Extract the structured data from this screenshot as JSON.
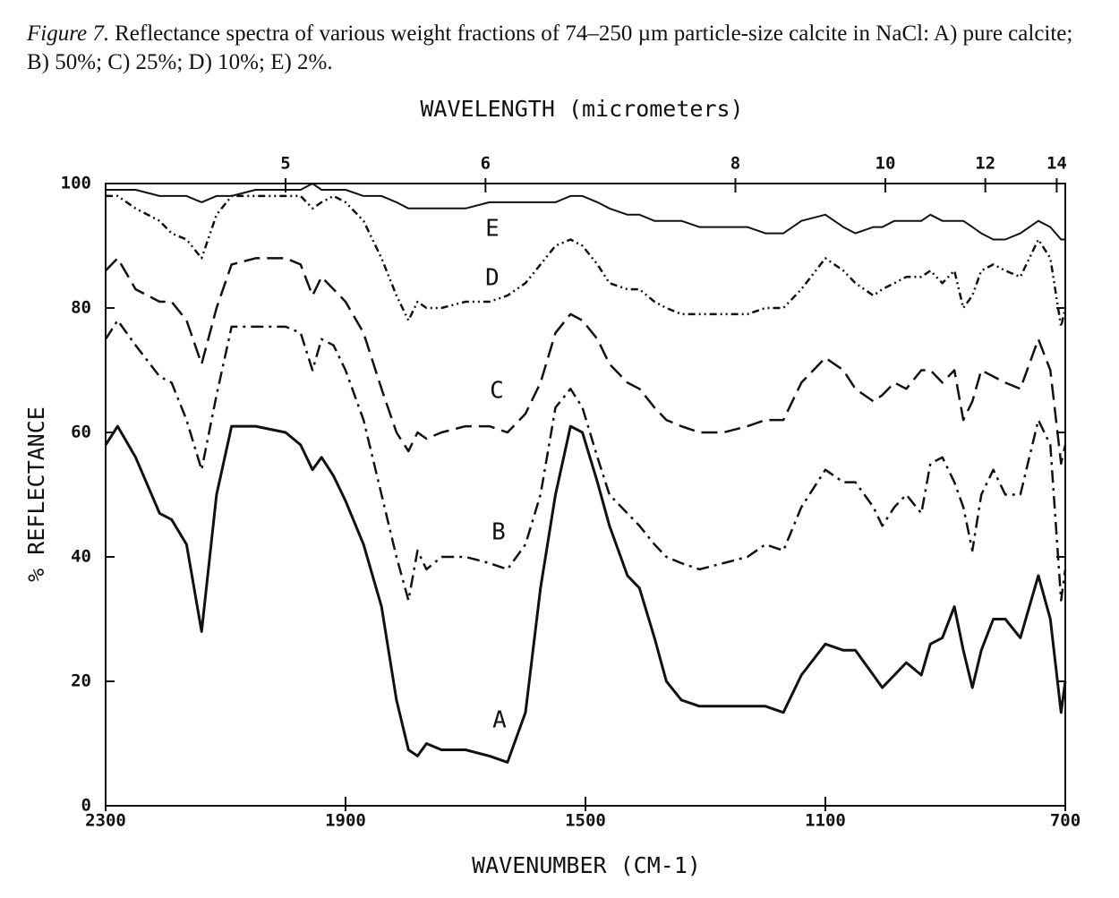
{
  "caption_label": "Figure 7.",
  "caption": "Reflectance spectra of various weight fractions of 74–250 µm particle-size calcite in NaCl: A) pure calcite; B) 50%; C) 25%; D) 10%; E) 2%.",
  "chart_data": {
    "type": "line",
    "x_label": "WAVENUMBER (CM-1)",
    "x2_label": "WAVELENGTH (micrometers)",
    "y_label": "% REFLECTANCE",
    "xlim": [
      2300,
      700
    ],
    "xticks": [
      2300,
      1900,
      1500,
      1100,
      700
    ],
    "x2ticks": [
      5,
      6,
      8,
      10,
      12,
      14
    ],
    "ylim": [
      0,
      100
    ],
    "yticks": [
      0,
      20,
      40,
      60,
      80,
      100
    ],
    "grid": false,
    "x": [
      2300,
      2280,
      2250,
      2210,
      2190,
      2165,
      2140,
      2115,
      2090,
      2050,
      2000,
      1975,
      1955,
      1940,
      1920,
      1900,
      1870,
      1840,
      1815,
      1795,
      1780,
      1765,
      1740,
      1700,
      1660,
      1630,
      1600,
      1575,
      1550,
      1525,
      1505,
      1480,
      1460,
      1430,
      1410,
      1385,
      1365,
      1340,
      1310,
      1270,
      1230,
      1200,
      1170,
      1140,
      1100,
      1070,
      1050,
      1020,
      1005,
      985,
      965,
      940,
      925,
      905,
      885,
      870,
      855,
      840,
      820,
      800,
      775,
      745,
      725,
      707,
      700
    ],
    "series": [
      {
        "name": "A",
        "color": "#111111",
        "linestyle": "solid",
        "values": [
          58,
          61,
          56,
          47,
          46,
          42,
          28,
          50,
          61,
          61,
          60,
          58,
          54,
          56,
          53,
          49,
          42,
          32,
          17,
          9,
          8,
          10,
          9,
          9,
          8,
          7,
          15,
          35,
          50,
          61,
          60,
          52,
          45,
          37,
          35,
          27,
          20,
          17,
          16,
          16,
          16,
          16,
          15,
          21,
          26,
          25,
          25,
          21,
          19,
          21,
          23,
          21,
          26,
          27,
          32,
          25,
          19,
          25,
          30,
          30,
          27,
          37,
          30,
          15,
          20
        ]
      },
      {
        "name": "B",
        "color": "#111111",
        "linestyle": "dash-dot",
        "values": [
          75,
          78,
          74,
          69,
          68,
          62,
          54,
          66,
          77,
          77,
          77,
          76,
          70,
          75,
          74,
          70,
          62,
          50,
          40,
          33,
          41,
          38,
          40,
          40,
          39,
          38,
          42,
          50,
          64,
          67,
          64,
          56,
          50,
          47,
          45,
          42,
          40,
          39,
          38,
          39,
          40,
          42,
          41,
          48,
          54,
          52,
          52,
          48,
          45,
          48,
          50,
          47,
          55,
          56,
          52,
          48,
          41,
          50,
          54,
          50,
          50,
          62,
          58,
          33,
          38
        ]
      },
      {
        "name": "C",
        "color": "#111111",
        "linestyle": "dashed",
        "values": [
          86,
          88,
          83,
          81,
          81,
          78,
          71,
          80,
          87,
          88,
          88,
          87,
          82,
          85,
          83,
          81,
          76,
          67,
          60,
          57,
          60,
          59,
          60,
          61,
          61,
          60,
          63,
          68,
          76,
          79,
          78,
          75,
          71,
          68,
          67,
          64,
          62,
          61,
          60,
          60,
          61,
          62,
          62,
          68,
          72,
          70,
          67,
          65,
          66,
          68,
          67,
          70,
          70,
          68,
          70,
          62,
          65,
          70,
          69,
          68,
          67,
          75,
          70,
          55,
          58
        ]
      },
      {
        "name": "D",
        "color": "#111111",
        "linestyle": "dot-dash",
        "values": [
          98,
          98,
          96,
          94,
          92,
          91,
          88,
          95,
          98,
          98,
          98,
          98,
          96,
          97,
          98,
          97,
          94,
          88,
          82,
          78,
          81,
          80,
          80,
          81,
          81,
          82,
          84,
          87,
          90,
          91,
          90,
          87,
          84,
          83,
          83,
          81,
          80,
          79,
          79,
          79,
          79,
          80,
          80,
          83,
          88,
          86,
          84,
          82,
          83,
          84,
          85,
          85,
          86,
          84,
          86,
          80,
          82,
          86,
          87,
          86,
          85,
          91,
          88,
          77,
          80
        ]
      },
      {
        "name": "E",
        "color": "#111111",
        "linestyle": "thin",
        "values": [
          99,
          99,
          99,
          98,
          98,
          98,
          97,
          98,
          98,
          99,
          99,
          99,
          100,
          99,
          99,
          99,
          98,
          98,
          97,
          96,
          96,
          96,
          96,
          96,
          97,
          97,
          97,
          97,
          97,
          98,
          98,
          97,
          96,
          95,
          95,
          94,
          94,
          94,
          93,
          93,
          93,
          92,
          92,
          94,
          95,
          93,
          92,
          93,
          93,
          94,
          94,
          94,
          95,
          94,
          94,
          94,
          93,
          92,
          91,
          91,
          92,
          94,
          93,
          91,
          91
        ]
      }
    ]
  }
}
